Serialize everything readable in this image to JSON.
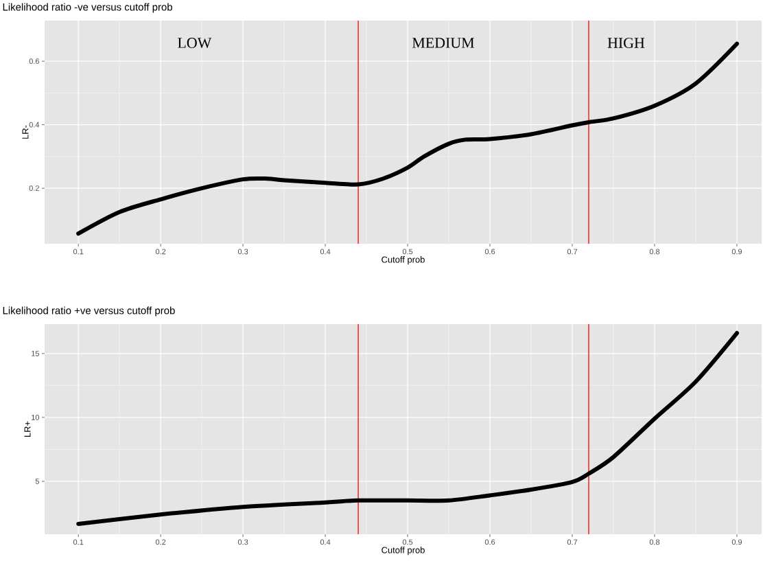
{
  "chart_data": [
    {
      "type": "line",
      "title": "Likelihood ratio -ve versus cutoff prob",
      "xlabel": "Cutoff prob",
      "ylabel": "LR-",
      "x": [
        0.1,
        0.15,
        0.2,
        0.25,
        0.3,
        0.33,
        0.35,
        0.4,
        0.44,
        0.47,
        0.5,
        0.52,
        0.55,
        0.57,
        0.6,
        0.65,
        0.7,
        0.72,
        0.75,
        0.8,
        0.85,
        0.9
      ],
      "series": [
        {
          "color": "#000000",
          "values": [
            0.057,
            0.125,
            0.165,
            0.2,
            0.228,
            0.23,
            0.225,
            0.217,
            0.212,
            0.23,
            0.265,
            0.3,
            0.34,
            0.353,
            0.355,
            0.37,
            0.398,
            0.408,
            0.42,
            0.46,
            0.53,
            0.655
          ]
        }
      ],
      "xlim": [
        0.059,
        0.93
      ],
      "ylim": [
        0.025,
        0.728
      ],
      "xticks": [
        0.1,
        0.2,
        0.3,
        0.4,
        0.5,
        0.6,
        0.7,
        0.8,
        0.9
      ],
      "yticks": [
        0.2,
        0.4,
        0.6
      ],
      "grid": true,
      "line_style": "solid",
      "marker": "none",
      "ref_lines": [
        {
          "axis": "x",
          "value": 0.44,
          "color": "#ff0000"
        },
        {
          "axis": "x",
          "value": 0.72,
          "color": "#ff0000"
        }
      ],
      "annotations": [
        "LOW",
        "MEDIUM",
        "HIGH"
      ]
    },
    {
      "type": "line",
      "title": "Likelihood ratio +ve versus cutoff prob",
      "xlabel": "Cutoff prob",
      "ylabel": "LR+",
      "x": [
        0.1,
        0.2,
        0.3,
        0.4,
        0.44,
        0.5,
        0.55,
        0.6,
        0.65,
        0.7,
        0.72,
        0.75,
        0.8,
        0.85,
        0.9
      ],
      "series": [
        {
          "color": "#000000",
          "values": [
            1.67,
            2.4,
            3.0,
            3.35,
            3.5,
            3.5,
            3.5,
            3.9,
            4.35,
            4.95,
            5.6,
            6.9,
            9.9,
            12.8,
            16.6
          ]
        }
      ],
      "xlim": [
        0.059,
        0.93
      ],
      "ylim": [
        0.86,
        17.3
      ],
      "xticks": [
        0.1,
        0.2,
        0.3,
        0.4,
        0.5,
        0.6,
        0.7,
        0.8,
        0.9
      ],
      "yticks": [
        5,
        10,
        15
      ],
      "grid": true,
      "line_style": "solid",
      "marker": "none",
      "ref_lines": [
        {
          "axis": "x",
          "value": 0.44,
          "color": "#ff0000"
        },
        {
          "axis": "x",
          "value": 0.72,
          "color": "#ff0000"
        }
      ]
    }
  ]
}
